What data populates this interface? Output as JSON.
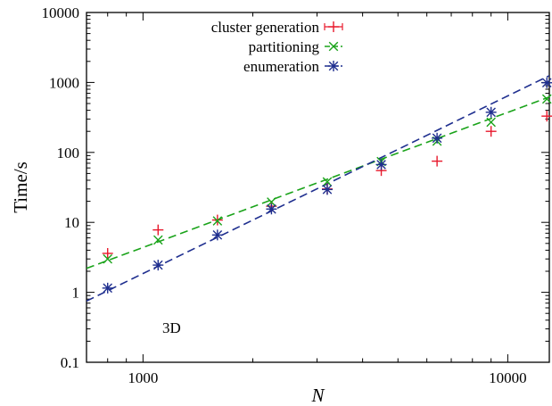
{
  "chart_data": {
    "type": "scatter",
    "xlabel": "N",
    "ylabel": "Time/s",
    "x_scale": "log",
    "y_scale": "log",
    "xlim": [
      700,
      13000
    ],
    "ylim": [
      0.1,
      10000
    ],
    "x_ticks": [
      1000,
      10000
    ],
    "x_tick_labels": [
      "1000",
      "10000"
    ],
    "y_ticks": [
      0.1,
      1,
      10,
      100,
      1000,
      10000
    ],
    "y_tick_labels": [
      "0.1",
      "1",
      "10",
      "100",
      "1000",
      "10000"
    ],
    "grid": false,
    "legend_position": "top-center",
    "annotation": "3D",
    "series": [
      {
        "name": "cluster generation",
        "marker": "plus",
        "color": "#e8192c",
        "fit_line": false,
        "x": [
          800,
          1100,
          1600,
          2250,
          3200,
          4500,
          6400,
          9000,
          12800
        ],
        "y": [
          3.6,
          7.8,
          10.8,
          17,
          30,
          55,
          75,
          200,
          330
        ]
      },
      {
        "name": "partitioning",
        "marker": "x",
        "color": "#1aa31a",
        "fit_line": true,
        "fit": {
          "x": [
            700,
            13000
          ],
          "y": [
            2.2,
            620
          ]
        },
        "x": [
          800,
          1100,
          1600,
          2250,
          3200,
          4500,
          6400,
          9000,
          12800
        ],
        "y": [
          3.0,
          5.6,
          10.5,
          19.5,
          38,
          74,
          145,
          270,
          580
        ]
      },
      {
        "name": "enumeration",
        "marker": "asterisk",
        "color": "#1f2f8f",
        "fit_line": true,
        "fit": {
          "x": [
            700,
            13000
          ],
          "y": [
            0.75,
            1250
          ]
        },
        "x": [
          800,
          1100,
          1600,
          2250,
          3200,
          4500,
          6400,
          9000,
          12800
        ],
        "y": [
          1.15,
          2.45,
          6.6,
          15.5,
          29.5,
          67,
          160,
          375,
          990
        ]
      }
    ]
  }
}
